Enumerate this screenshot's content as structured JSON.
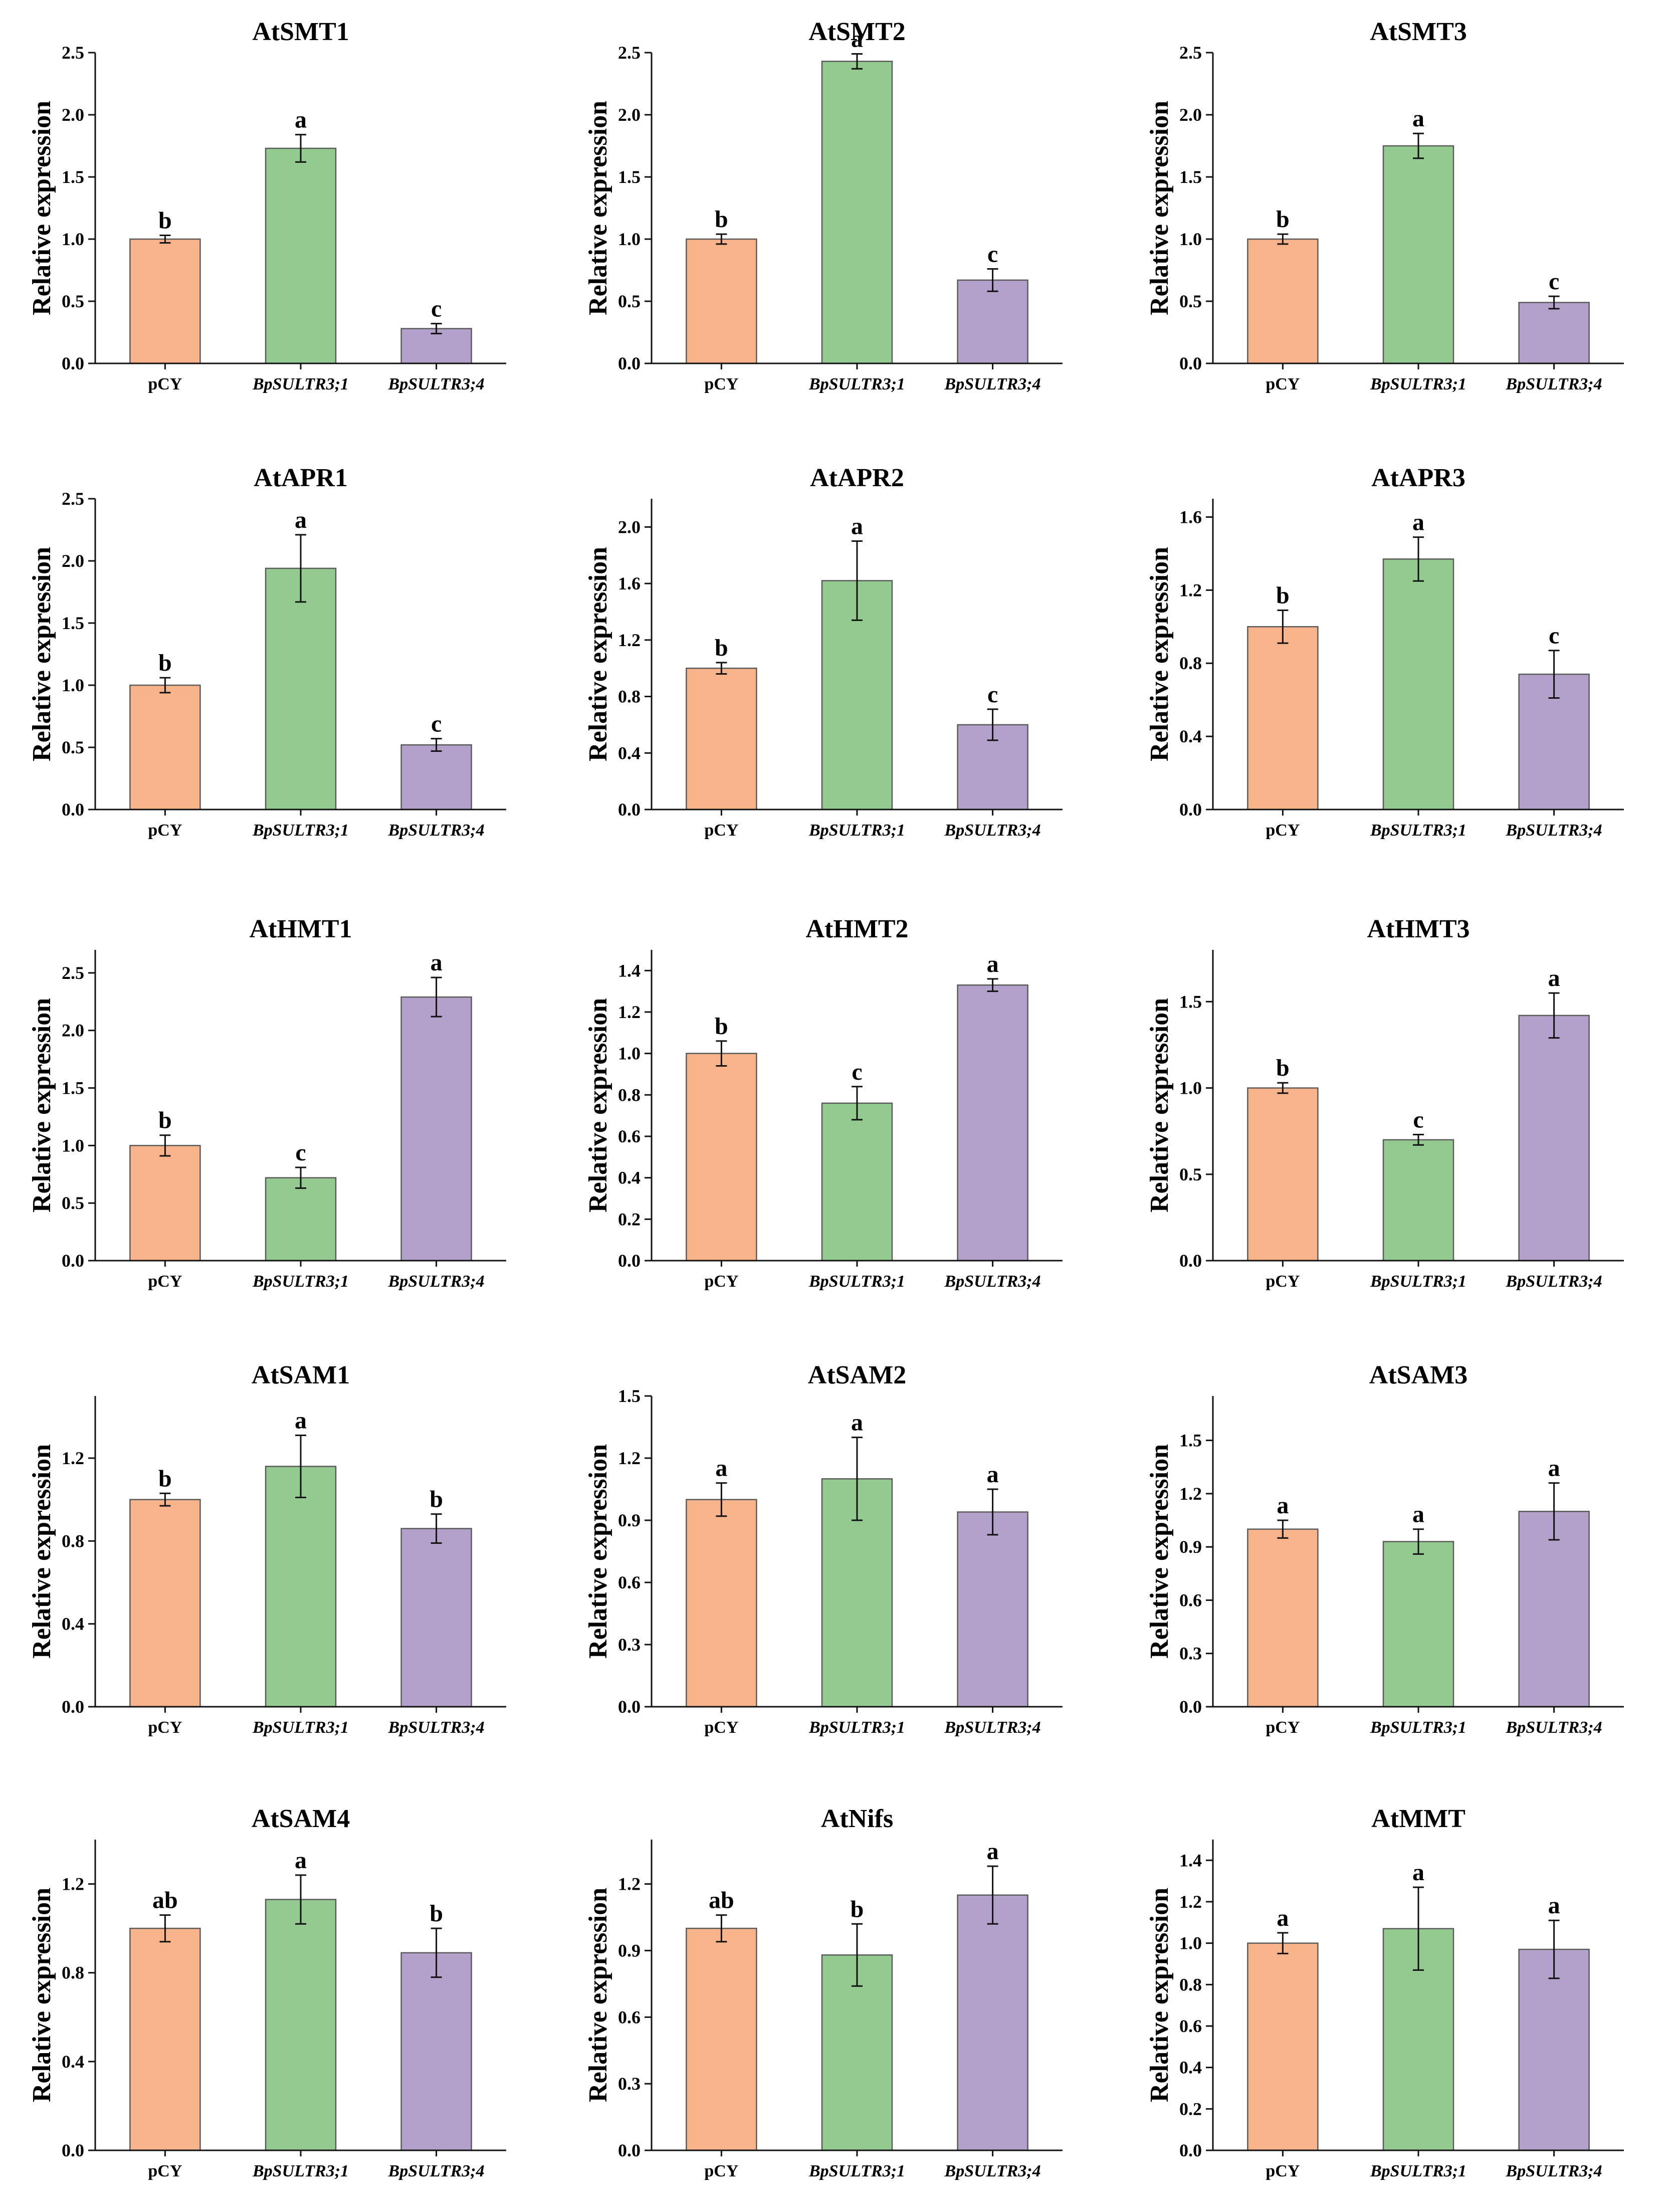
{
  "figure": {
    "categories": [
      "pCY",
      "BpSULTR3;1",
      "BpSULTR3;4"
    ],
    "ylabel": "Relative expression",
    "colors": {
      "pCY": "#f7b48a",
      "BpSULTR3;1": "#93ca90",
      "BpSULTR3;4": "#b3a1cb",
      "bar_edge": "#5a5a5a"
    }
  },
  "chart_data": [
    {
      "type": "bar",
      "title": "AtSMT1",
      "ylabel": "Relative expression",
      "categories": [
        "pCY",
        "BpSULTR3;1",
        "BpSULTR3;4"
      ],
      "values": [
        1.0,
        1.73,
        0.28
      ],
      "errors": [
        0.03,
        0.11,
        0.04
      ],
      "significance": [
        "b",
        "a",
        "c"
      ],
      "ylim": [
        0,
        2.5
      ],
      "yticks": [
        0.0,
        0.5,
        1.0,
        1.5,
        2.0,
        2.5
      ],
      "yticklabels": [
        "0.0",
        "0.5",
        "1.0",
        "1.5",
        "2.0",
        "2.5"
      ]
    },
    {
      "type": "bar",
      "title": "AtSMT2",
      "ylabel": "Relative expression",
      "categories": [
        "pCY",
        "BpSULTR3;1",
        "BpSULTR3;4"
      ],
      "values": [
        1.0,
        2.43,
        0.67
      ],
      "errors": [
        0.04,
        0.06,
        0.09
      ],
      "significance": [
        "b",
        "a",
        "c"
      ],
      "ylim": [
        0,
        2.5
      ],
      "yticks": [
        0.0,
        0.5,
        1.0,
        1.5,
        2.0,
        2.5
      ],
      "yticklabels": [
        "0.0",
        "0.5",
        "1.0",
        "1.5",
        "2.0",
        "2.5"
      ]
    },
    {
      "type": "bar",
      "title": "AtSMT3",
      "ylabel": "Relative expression",
      "categories": [
        "pCY",
        "BpSULTR3;1",
        "BpSULTR3;4"
      ],
      "values": [
        1.0,
        1.75,
        0.49
      ],
      "errors": [
        0.04,
        0.1,
        0.05
      ],
      "significance": [
        "b",
        "a",
        "c"
      ],
      "ylim": [
        0,
        2.5
      ],
      "yticks": [
        0.0,
        0.5,
        1.0,
        1.5,
        2.0,
        2.5
      ],
      "yticklabels": [
        "0.0",
        "0.5",
        "1.0",
        "1.5",
        "2.0",
        "2.5"
      ]
    },
    {
      "type": "bar",
      "title": "AtAPR1",
      "ylabel": "Relative expression",
      "categories": [
        "pCY",
        "BpSULTR3;1",
        "BpSULTR3;4"
      ],
      "values": [
        1.0,
        1.94,
        0.52
      ],
      "errors": [
        0.06,
        0.27,
        0.05
      ],
      "significance": [
        "b",
        "a",
        "c"
      ],
      "ylim": [
        0,
        2.5
      ],
      "yticks": [
        0.0,
        0.5,
        1.0,
        1.5,
        2.0,
        2.5
      ],
      "yticklabels": [
        "0.0",
        "0.5",
        "1.0",
        "1.5",
        "2.0",
        "2.5"
      ]
    },
    {
      "type": "bar",
      "title": "AtAPR2",
      "ylabel": "Relative expression",
      "categories": [
        "pCY",
        "BpSULTR3;1",
        "BpSULTR3;4"
      ],
      "values": [
        1.0,
        1.62,
        0.6
      ],
      "errors": [
        0.04,
        0.28,
        0.11
      ],
      "significance": [
        "b",
        "a",
        "c"
      ],
      "ylim": [
        0,
        2.2
      ],
      "yticks": [
        0.0,
        0.4,
        0.8,
        1.2,
        1.6,
        2.0
      ],
      "yticklabels": [
        "0.0",
        "0.4",
        "0.8",
        "1.2",
        "1.6",
        "2.0"
      ]
    },
    {
      "type": "bar",
      "title": "AtAPR3",
      "ylabel": "Relative expression",
      "categories": [
        "pCY",
        "BpSULTR3;1",
        "BpSULTR3;4"
      ],
      "values": [
        1.0,
        1.37,
        0.74
      ],
      "errors": [
        0.09,
        0.12,
        0.13
      ],
      "significance": [
        "b",
        "a",
        "c"
      ],
      "ylim": [
        0,
        1.7
      ],
      "yticks": [
        0.0,
        0.4,
        0.8,
        1.2,
        1.6
      ],
      "yticklabels": [
        "0.0",
        "0.4",
        "0.8",
        "1.2",
        "1.6"
      ]
    },
    {
      "type": "bar",
      "title": "AtHMT1",
      "ylabel": "Relative expression",
      "categories": [
        "pCY",
        "BpSULTR3;1",
        "BpSULTR3;4"
      ],
      "values": [
        1.0,
        0.72,
        2.29
      ],
      "errors": [
        0.09,
        0.09,
        0.17
      ],
      "significance": [
        "b",
        "c",
        "a"
      ],
      "ylim": [
        0,
        2.7
      ],
      "yticks": [
        0.0,
        0.5,
        1.0,
        1.5,
        2.0,
        2.5
      ],
      "yticklabels": [
        "0.0",
        "0.5",
        "1.0",
        "1.5",
        "2.0",
        "2.5"
      ]
    },
    {
      "type": "bar",
      "title": "AtHMT2",
      "ylabel": "Relative expression",
      "categories": [
        "pCY",
        "BpSULTR3;1",
        "BpSULTR3;4"
      ],
      "values": [
        1.0,
        0.76,
        1.33
      ],
      "errors": [
        0.06,
        0.08,
        0.03
      ],
      "significance": [
        "b",
        "c",
        "a"
      ],
      "ylim": [
        0,
        1.5
      ],
      "yticks": [
        0.0,
        0.2,
        0.4,
        0.6,
        0.8,
        1.0,
        1.2,
        1.4
      ],
      "yticklabels": [
        "0.0",
        "0.2",
        "0.4",
        "0.6",
        "0.8",
        "1.0",
        "1.2",
        "1.4"
      ]
    },
    {
      "type": "bar",
      "title": "AtHMT3",
      "ylabel": "Relative expression",
      "categories": [
        "pCY",
        "BpSULTR3;1",
        "BpSULTR3;4"
      ],
      "values": [
        1.0,
        0.7,
        1.42
      ],
      "errors": [
        0.03,
        0.03,
        0.13
      ],
      "significance": [
        "b",
        "c",
        "a"
      ],
      "ylim": [
        0,
        1.8
      ],
      "yticks": [
        0.0,
        0.5,
        1.0,
        1.5
      ],
      "yticklabels": [
        "0.0",
        "0.5",
        "1.0",
        "1.5"
      ]
    },
    {
      "type": "bar",
      "title": "AtSAM1",
      "ylabel": "Relative expression",
      "categories": [
        "pCY",
        "BpSULTR3;1",
        "BpSULTR3;4"
      ],
      "values": [
        1.0,
        1.16,
        0.86
      ],
      "errors": [
        0.03,
        0.15,
        0.07
      ],
      "significance": [
        "b",
        "a",
        "b"
      ],
      "ylim": [
        0,
        1.5
      ],
      "yticks": [
        0.0,
        0.4,
        0.8,
        1.2
      ],
      "yticklabels": [
        "0.0",
        "0.4",
        "0.8",
        "1.2"
      ]
    },
    {
      "type": "bar",
      "title": "AtSAM2",
      "ylabel": "Relative expression",
      "categories": [
        "pCY",
        "BpSULTR3;1",
        "BpSULTR3;4"
      ],
      "values": [
        1.0,
        1.1,
        0.94
      ],
      "errors": [
        0.08,
        0.2,
        0.11
      ],
      "significance": [
        "a",
        "a",
        "a"
      ],
      "ylim": [
        0,
        1.5
      ],
      "yticks": [
        0.0,
        0.3,
        0.6,
        0.9,
        1.2,
        1.5
      ],
      "yticklabels": [
        "0.0",
        "0.3",
        "0.6",
        "0.9",
        "1.2",
        "1.5"
      ]
    },
    {
      "type": "bar",
      "title": "AtSAM3",
      "ylabel": "Relative expression",
      "categories": [
        "pCY",
        "BpSULTR3;1",
        "BpSULTR3;4"
      ],
      "values": [
        1.0,
        0.93,
        1.1
      ],
      "errors": [
        0.05,
        0.07,
        0.16
      ],
      "significance": [
        "a",
        "a",
        "a"
      ],
      "ylim": [
        0,
        1.75
      ],
      "yticks": [
        0.0,
        0.3,
        0.6,
        0.9,
        1.2,
        1.5
      ],
      "yticklabels": [
        "0.0",
        "0.3",
        "0.6",
        "0.9",
        "1.2",
        "1.5"
      ]
    },
    {
      "type": "bar",
      "title": "AtSAM4",
      "ylabel": "Relative expression",
      "categories": [
        "pCY",
        "BpSULTR3;1",
        "BpSULTR3;4"
      ],
      "values": [
        1.0,
        1.13,
        0.89
      ],
      "errors": [
        0.06,
        0.11,
        0.11
      ],
      "significance": [
        "ab",
        "a",
        "b"
      ],
      "ylim": [
        0,
        1.4
      ],
      "yticks": [
        0.0,
        0.4,
        0.8,
        1.2
      ],
      "yticklabels": [
        "0.0",
        "0.4",
        "0.8",
        "1.2"
      ]
    },
    {
      "type": "bar",
      "title": "AtNifs",
      "ylabel": "Relative expression",
      "categories": [
        "pCY",
        "BpSULTR3;1",
        "BpSULTR3;4"
      ],
      "values": [
        1.0,
        0.88,
        1.15
      ],
      "errors": [
        0.06,
        0.14,
        0.13
      ],
      "significance": [
        "ab",
        "b",
        "a"
      ],
      "ylim": [
        0,
        1.4
      ],
      "yticks": [
        0.0,
        0.3,
        0.6,
        0.9,
        1.2
      ],
      "yticklabels": [
        "0.0",
        "0.3",
        "0.6",
        "0.9",
        "1.2"
      ]
    },
    {
      "type": "bar",
      "title": "AtMMT",
      "ylabel": "Relative expression",
      "categories": [
        "pCY",
        "BpSULTR3;1",
        "BpSULTR3;4"
      ],
      "values": [
        1.0,
        1.07,
        0.97
      ],
      "errors": [
        0.05,
        0.2,
        0.14
      ],
      "significance": [
        "a",
        "a",
        "a"
      ],
      "ylim": [
        0,
        1.5
      ],
      "yticks": [
        0.0,
        0.2,
        0.4,
        0.6,
        0.8,
        1.0,
        1.2,
        1.4
      ],
      "yticklabels": [
        "0.0",
        "0.2",
        "0.4",
        "0.6",
        "0.8",
        "1.0",
        "1.2",
        "1.4"
      ]
    }
  ]
}
